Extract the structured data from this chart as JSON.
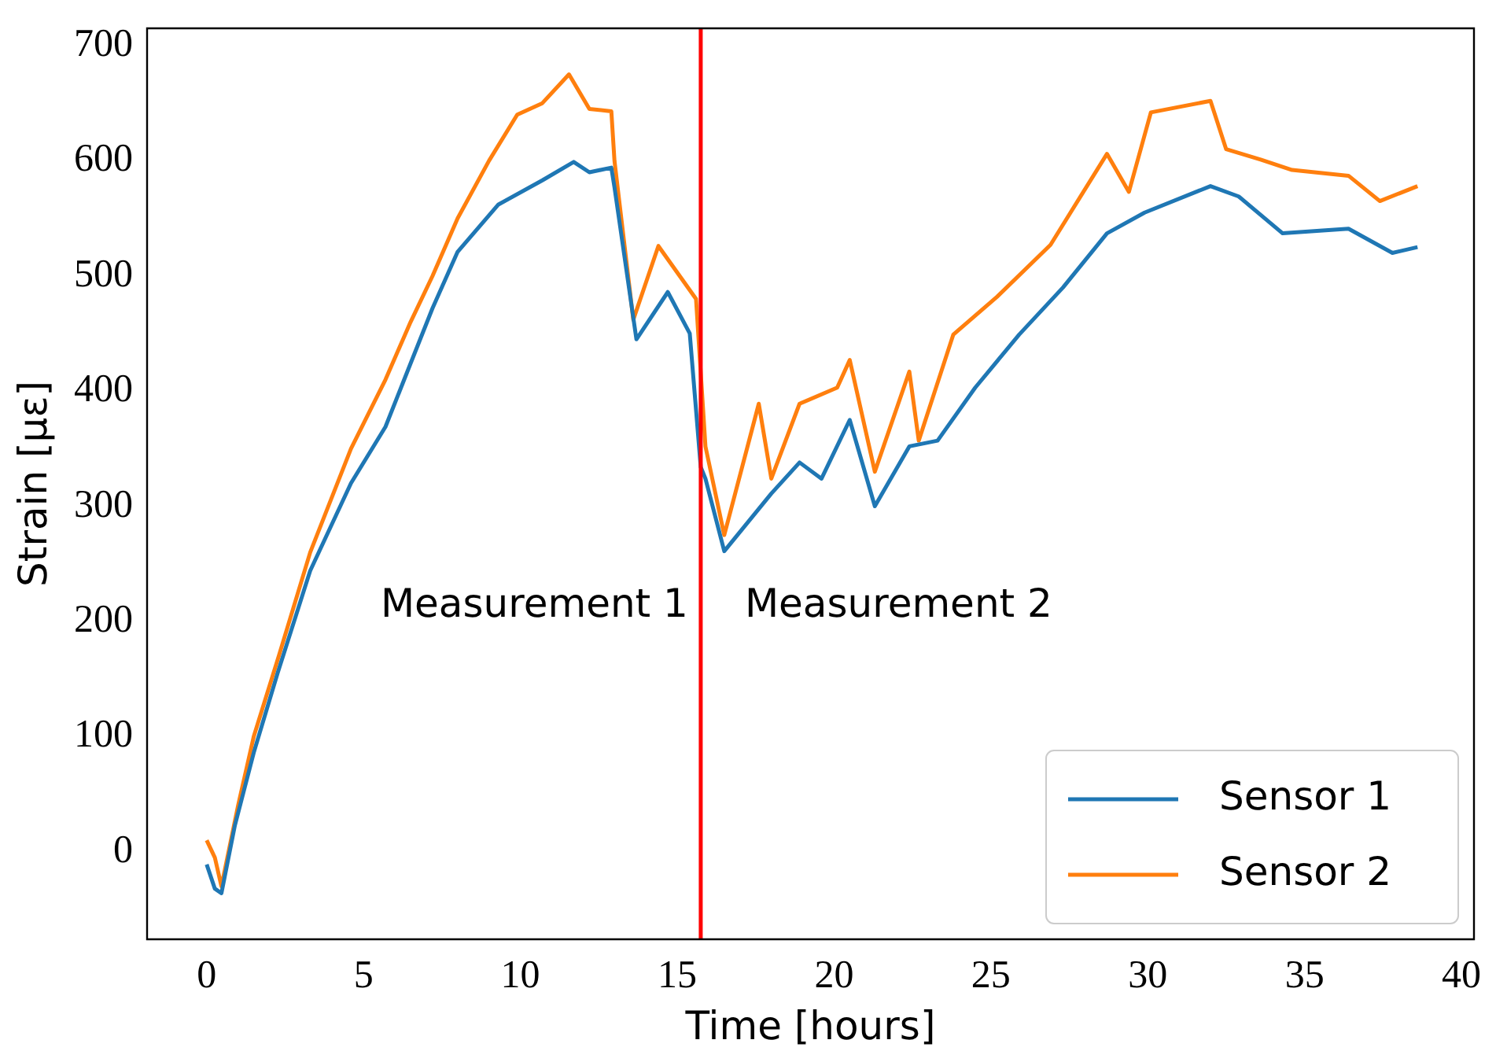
{
  "chart_data": {
    "type": "line",
    "xlabel": "Time [hours]",
    "ylabel": "Strain [με]",
    "xlim": [
      -1.9,
      40.4
    ],
    "ylim": [
      -76,
      715
    ],
    "xticks": [
      0,
      5,
      10,
      15,
      20,
      25,
      30,
      35,
      40
    ],
    "yticks": [
      0,
      100,
      200,
      300,
      400,
      500,
      600,
      700
    ],
    "legend": "bottom right",
    "grid": false,
    "marker": "none",
    "line_style": "solid",
    "ref_lines": [
      {
        "axis": "x",
        "value": 15.75,
        "color": "#ff0000"
      }
    ],
    "annotations": [
      "Measurement 1",
      "Measurement 2"
    ],
    "series": [
      {
        "name": "Sensor 1",
        "color": "#1f77b4",
        "x": [
          0,
          0.26,
          0.47,
          0.9,
          1.5,
          2.26,
          3.3,
          4.6,
          5.7,
          6.5,
          7.2,
          8.0,
          9.3,
          10.7,
          11.7,
          12.2,
          12.9,
          13.0,
          13.7,
          14.7,
          15.4,
          15.75,
          15.9,
          16.5,
          18.0,
          18.9,
          19.6,
          20.5,
          21.3,
          22.4,
          23.3,
          24.5,
          25.9,
          27.3,
          28.7,
          29.9,
          32.0,
          32.9,
          34.3,
          36.4,
          37.8,
          38.6
        ],
        "values": [
          -11,
          -32,
          -36,
          23,
          86,
          155,
          244,
          320,
          369,
          424,
          472,
          521,
          562,
          583,
          599,
          590,
          594,
          577,
          445,
          486,
          450,
          334,
          324,
          261,
          311,
          338,
          324,
          375,
          300,
          352,
          357,
          403,
          449,
          490,
          537,
          555,
          578,
          569,
          537,
          541,
          520,
          525
        ]
      },
      {
        "name": "Sensor 2",
        "color": "#ff7f0e",
        "x": [
          0,
          0.26,
          0.47,
          1.0,
          1.5,
          2.3,
          3.3,
          4.6,
          5.7,
          6.5,
          7.2,
          8.0,
          9.0,
          9.9,
          10.7,
          11.55,
          12.2,
          12.9,
          13.0,
          13.6,
          14.4,
          15.6,
          15.9,
          16.5,
          17.6,
          18.0,
          18.9,
          20.1,
          20.5,
          21.3,
          22.4,
          22.7,
          23.8,
          25.2,
          26.9,
          28.7,
          29.4,
          30.1,
          32.0,
          32.5,
          33.6,
          34.6,
          36.4,
          37.4,
          38.6
        ],
        "values": [
          10,
          -5,
          -30,
          40,
          100,
          170,
          260,
          350,
          410,
          460,
          500,
          550,
          600,
          640,
          650,
          675,
          645,
          643,
          600,
          462,
          526,
          480,
          352,
          275,
          389,
          324,
          389,
          403,
          427,
          330,
          417,
          357,
          449,
          482,
          527,
          606,
          573,
          642,
          652,
          610,
          601,
          592,
          587,
          565,
          578
        ]
      }
    ]
  }
}
